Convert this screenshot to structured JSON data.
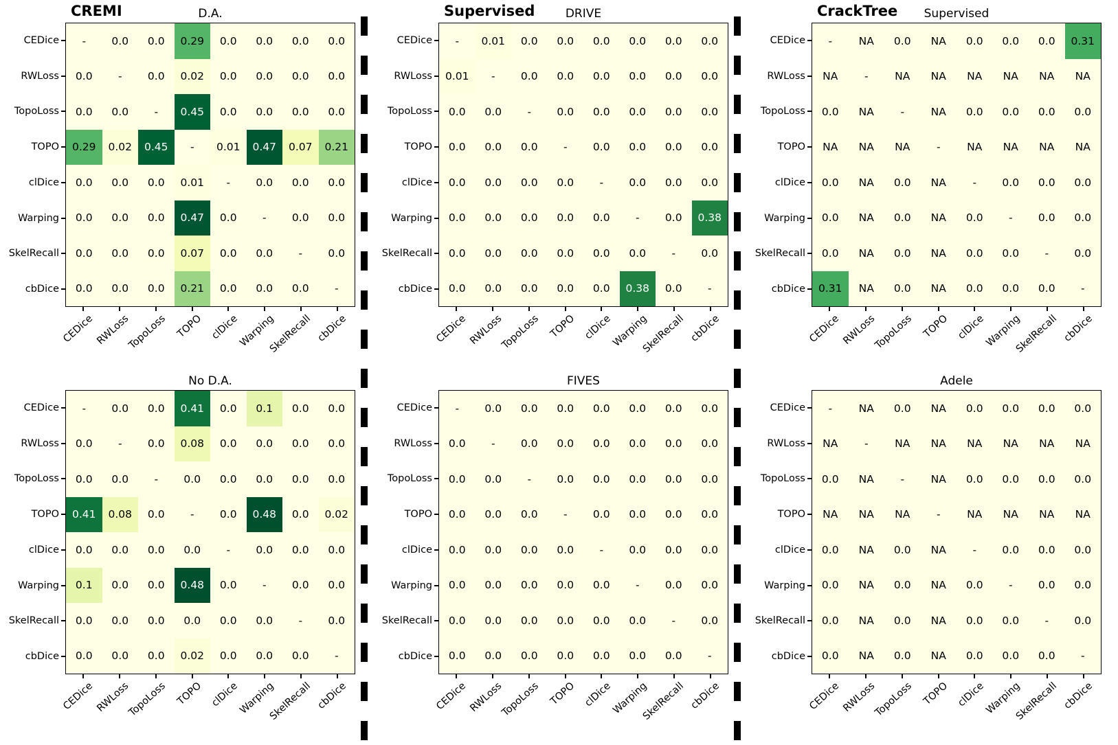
{
  "figure": {
    "background": "#ffffff"
  },
  "colors": {
    "border": "#000000",
    "text": "#000000",
    "cell_text_light": "#ffffff",
    "separator": "#000000",
    "cmap_stops": [
      "#ffffe5",
      "#f7fcb9",
      "#d9f0a3",
      "#addd8e",
      "#78c679",
      "#41ab5d",
      "#238443",
      "#006837",
      "#004529"
    ]
  },
  "chart_data": [
    {
      "type": "heatmap",
      "id": "cremi_da",
      "grid_position": "top-left",
      "group_label": "CREMI",
      "title": "D.A.",
      "colormap": "YlGn",
      "vmin": 0,
      "vmax": 0.5,
      "grid": "off",
      "legend": "none",
      "categories": [
        "CEDice",
        "RWLoss",
        "TopoLoss",
        "TOPO",
        "clDice",
        "Warping",
        "SkelRecall",
        "cbDice"
      ],
      "values": [
        [
          "-",
          "0.0",
          "0.0",
          "0.29",
          "0.0",
          "0.0",
          "0.0",
          "0.0"
        ],
        [
          "0.0",
          "-",
          "0.0",
          "0.02",
          "0.0",
          "0.0",
          "0.0",
          "0.0"
        ],
        [
          "0.0",
          "0.0",
          "-",
          "0.45",
          "0.0",
          "0.0",
          "0.0",
          "0.0"
        ],
        [
          "0.29",
          "0.02",
          "0.45",
          "-",
          "0.01",
          "0.47",
          "0.07",
          "0.21"
        ],
        [
          "0.0",
          "0.0",
          "0.0",
          "0.01",
          "-",
          "0.0",
          "0.0",
          "0.0"
        ],
        [
          "0.0",
          "0.0",
          "0.0",
          "0.47",
          "0.0",
          "-",
          "0.0",
          "0.0"
        ],
        [
          "0.0",
          "0.0",
          "0.0",
          "0.07",
          "0.0",
          "0.0",
          "-",
          "0.0"
        ],
        [
          "0.0",
          "0.0",
          "0.0",
          "0.21",
          "0.0",
          "0.0",
          "0.0",
          "-"
        ]
      ]
    },
    {
      "type": "heatmap",
      "id": "drive",
      "grid_position": "top-middle",
      "group_label": "Supervised",
      "title": "DRIVE",
      "colormap": "YlGn",
      "vmin": 0,
      "vmax": 0.5,
      "grid": "off",
      "legend": "none",
      "categories": [
        "CEDice",
        "RWLoss",
        "TopoLoss",
        "TOPO",
        "clDice",
        "Warping",
        "SkelRecall",
        "cbDice"
      ],
      "values": [
        [
          "-",
          "0.01",
          "0.0",
          "0.0",
          "0.0",
          "0.0",
          "0.0",
          "0.0"
        ],
        [
          "0.01",
          "-",
          "0.0",
          "0.0",
          "0.0",
          "0.0",
          "0.0",
          "0.0"
        ],
        [
          "0.0",
          "0.0",
          "-",
          "0.0",
          "0.0",
          "0.0",
          "0.0",
          "0.0"
        ],
        [
          "0.0",
          "0.0",
          "0.0",
          "-",
          "0.0",
          "0.0",
          "0.0",
          "0.0"
        ],
        [
          "0.0",
          "0.0",
          "0.0",
          "0.0",
          "-",
          "0.0",
          "0.0",
          "0.0"
        ],
        [
          "0.0",
          "0.0",
          "0.0",
          "0.0",
          "0.0",
          "-",
          "0.0",
          "0.38"
        ],
        [
          "0.0",
          "0.0",
          "0.0",
          "0.0",
          "0.0",
          "0.0",
          "-",
          "0.0"
        ],
        [
          "0.0",
          "0.0",
          "0.0",
          "0.0",
          "0.0",
          "0.38",
          "0.0",
          "-"
        ]
      ]
    },
    {
      "type": "heatmap",
      "id": "cracktree_supervised",
      "grid_position": "top-right",
      "group_label": "CrackTree",
      "title": "Supervised",
      "colormap": "YlGn",
      "vmin": 0,
      "vmax": 0.5,
      "grid": "off",
      "legend": "none",
      "categories": [
        "CEDice",
        "RWLoss",
        "TopoLoss",
        "TOPO",
        "clDice",
        "Warping",
        "SkelRecall",
        "cbDice"
      ],
      "values": [
        [
          "-",
          "NA",
          "0.0",
          "NA",
          "0.0",
          "0.0",
          "0.0",
          "0.31"
        ],
        [
          "NA",
          "-",
          "NA",
          "NA",
          "NA",
          "NA",
          "NA",
          "NA"
        ],
        [
          "0.0",
          "NA",
          "-",
          "NA",
          "0.0",
          "0.0",
          "0.0",
          "0.0"
        ],
        [
          "NA",
          "NA",
          "NA",
          "-",
          "NA",
          "NA",
          "NA",
          "NA"
        ],
        [
          "0.0",
          "NA",
          "0.0",
          "NA",
          "-",
          "0.0",
          "0.0",
          "0.0"
        ],
        [
          "0.0",
          "NA",
          "0.0",
          "NA",
          "0.0",
          "-",
          "0.0",
          "0.0"
        ],
        [
          "0.0",
          "NA",
          "0.0",
          "NA",
          "0.0",
          "0.0",
          "-",
          "0.0"
        ],
        [
          "0.31",
          "NA",
          "0.0",
          "NA",
          "0.0",
          "0.0",
          "0.0",
          "-"
        ]
      ]
    },
    {
      "type": "heatmap",
      "id": "cremi_no_da",
      "grid_position": "bottom-left",
      "group_label": "",
      "title": "No D.A.",
      "colormap": "YlGn",
      "vmin": 0,
      "vmax": 0.5,
      "grid": "off",
      "legend": "none",
      "categories": [
        "CEDice",
        "RWLoss",
        "TopoLoss",
        "TOPO",
        "clDice",
        "Warping",
        "SkelRecall",
        "cbDice"
      ],
      "values": [
        [
          "-",
          "0.0",
          "0.0",
          "0.41",
          "0.0",
          "0.1",
          "0.0",
          "0.0"
        ],
        [
          "0.0",
          "-",
          "0.0",
          "0.08",
          "0.0",
          "0.0",
          "0.0",
          "0.0"
        ],
        [
          "0.0",
          "0.0",
          "-",
          "0.0",
          "0.0",
          "0.0",
          "0.0",
          "0.0"
        ],
        [
          "0.41",
          "0.08",
          "0.0",
          "-",
          "0.0",
          "0.48",
          "0.0",
          "0.02"
        ],
        [
          "0.0",
          "0.0",
          "0.0",
          "0.0",
          "-",
          "0.0",
          "0.0",
          "0.0"
        ],
        [
          "0.1",
          "0.0",
          "0.0",
          "0.48",
          "0.0",
          "-",
          "0.0",
          "0.0"
        ],
        [
          "0.0",
          "0.0",
          "0.0",
          "0.0",
          "0.0",
          "0.0",
          "-",
          "0.0"
        ],
        [
          "0.0",
          "0.0",
          "0.0",
          "0.02",
          "0.0",
          "0.0",
          "0.0",
          "-"
        ]
      ]
    },
    {
      "type": "heatmap",
      "id": "fives",
      "grid_position": "bottom-middle",
      "group_label": "",
      "title": "FIVES",
      "colormap": "YlGn",
      "vmin": 0,
      "vmax": 0.5,
      "grid": "off",
      "legend": "none",
      "categories": [
        "CEDice",
        "RWLoss",
        "TopoLoss",
        "TOPO",
        "clDice",
        "Warping",
        "SkelRecall",
        "cbDice"
      ],
      "values": [
        [
          "-",
          "0.0",
          "0.0",
          "0.0",
          "0.0",
          "0.0",
          "0.0",
          "0.0"
        ],
        [
          "0.0",
          "-",
          "0.0",
          "0.0",
          "0.0",
          "0.0",
          "0.0",
          "0.0"
        ],
        [
          "0.0",
          "0.0",
          "-",
          "0.0",
          "0.0",
          "0.0",
          "0.0",
          "0.0"
        ],
        [
          "0.0",
          "0.0",
          "0.0",
          "-",
          "0.0",
          "0.0",
          "0.0",
          "0.0"
        ],
        [
          "0.0",
          "0.0",
          "0.0",
          "0.0",
          "-",
          "0.0",
          "0.0",
          "0.0"
        ],
        [
          "0.0",
          "0.0",
          "0.0",
          "0.0",
          "0.0",
          "-",
          "0.0",
          "0.0"
        ],
        [
          "0.0",
          "0.0",
          "0.0",
          "0.0",
          "0.0",
          "0.0",
          "-",
          "0.0"
        ],
        [
          "0.0",
          "0.0",
          "0.0",
          "0.0",
          "0.0",
          "0.0",
          "0.0",
          "-"
        ]
      ]
    },
    {
      "type": "heatmap",
      "id": "adele",
      "grid_position": "bottom-right",
      "group_label": "",
      "title": "Adele",
      "colormap": "YlGn",
      "vmin": 0,
      "vmax": 0.5,
      "grid": "off",
      "legend": "none",
      "categories": [
        "CEDice",
        "RWLoss",
        "TopoLoss",
        "TOPO",
        "clDice",
        "Warping",
        "SkelRecall",
        "cbDice"
      ],
      "values": [
        [
          "-",
          "NA",
          "0.0",
          "NA",
          "0.0",
          "0.0",
          "0.0",
          "0.0"
        ],
        [
          "NA",
          "-",
          "NA",
          "NA",
          "NA",
          "NA",
          "NA",
          "NA"
        ],
        [
          "0.0",
          "NA",
          "-",
          "NA",
          "0.0",
          "0.0",
          "0.0",
          "0.0"
        ],
        [
          "NA",
          "NA",
          "NA",
          "-",
          "NA",
          "NA",
          "NA",
          "NA"
        ],
        [
          "0.0",
          "NA",
          "0.0",
          "NA",
          "-",
          "0.0",
          "0.0",
          "0.0"
        ],
        [
          "0.0",
          "NA",
          "0.0",
          "NA",
          "0.0",
          "-",
          "0.0",
          "0.0"
        ],
        [
          "0.0",
          "NA",
          "0.0",
          "NA",
          "0.0",
          "0.0",
          "-",
          "0.0"
        ],
        [
          "0.0",
          "NA",
          "0.0",
          "NA",
          "0.0",
          "0.0",
          "0.0",
          "-"
        ]
      ]
    }
  ]
}
